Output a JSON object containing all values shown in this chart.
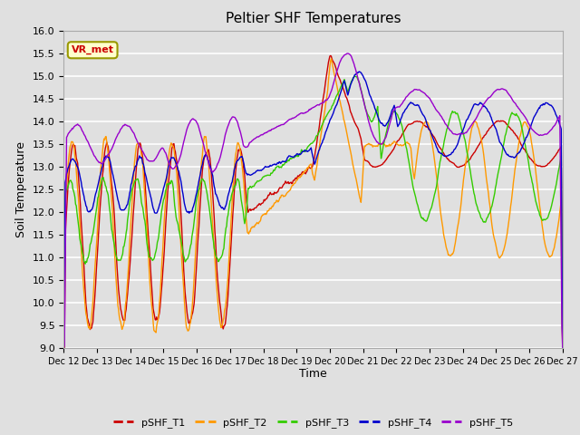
{
  "title": "Peltier SHF Temperatures",
  "xlabel": "Time",
  "ylabel": "Soil Temperature",
  "ylim": [
    9.0,
    16.0
  ],
  "yticks": [
    9.0,
    9.5,
    10.0,
    10.5,
    11.0,
    11.5,
    12.0,
    12.5,
    13.0,
    13.5,
    14.0,
    14.5,
    15.0,
    15.5,
    16.0
  ],
  "xtick_labels": [
    "Dec 12",
    "Dec 13",
    "Dec 14",
    "Dec 15",
    "Dec 16",
    "Dec 17",
    "Dec 18",
    "Dec 19",
    "Dec 20",
    "Dec 21",
    "Dec 22",
    "Dec 23",
    "Dec 24",
    "Dec 25",
    "Dec 26",
    "Dec 27"
  ],
  "series_colors": {
    "pSHF_T1": "#cc0000",
    "pSHF_T2": "#ff9900",
    "pSHF_T3": "#33cc00",
    "pSHF_T4": "#0000cc",
    "pSHF_T5": "#9900cc"
  },
  "legend_label": "VR_met",
  "legend_bg": "#ffffcc",
  "legend_border": "#999900",
  "background_color": "#e0e0e0",
  "grid_color": "#ffffff",
  "linewidth": 1.0
}
